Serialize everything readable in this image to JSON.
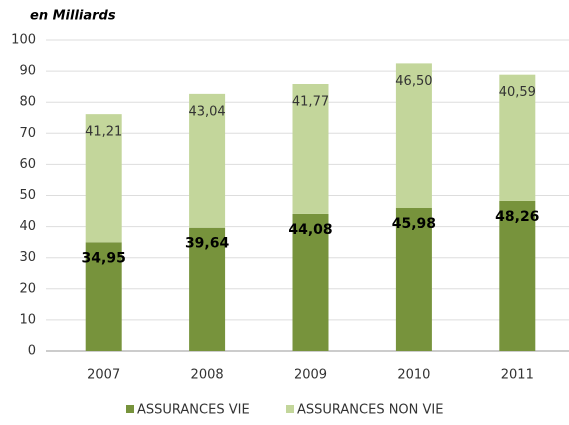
{
  "chart_data": {
    "type": "stacked_bar",
    "title": "en Milliards",
    "categories": [
      "2007",
      "2008",
      "2009",
      "2010",
      "2011"
    ],
    "series": [
      {
        "name": "ASSURANCES VIE",
        "color": "#77933c",
        "values": [
          34.95,
          39.64,
          44.08,
          45.98,
          48.26
        ],
        "value_labels": [
          "34,95",
          "39,64",
          "44,08",
          "45,98",
          "48,26"
        ]
      },
      {
        "name": "ASSURANCES NON VIE",
        "color": "#c3d69b",
        "values": [
          41.21,
          43.04,
          41.77,
          46.5,
          40.59
        ],
        "value_labels": [
          "41,21",
          "43,04",
          "41,77",
          "46,50",
          "40,59"
        ]
      }
    ],
    "ylim": [
      0,
      100
    ],
    "yticks": [
      0,
      10,
      20,
      30,
      40,
      50,
      60,
      70,
      80,
      90,
      100
    ],
    "grid": true,
    "legend": "bottom"
  }
}
